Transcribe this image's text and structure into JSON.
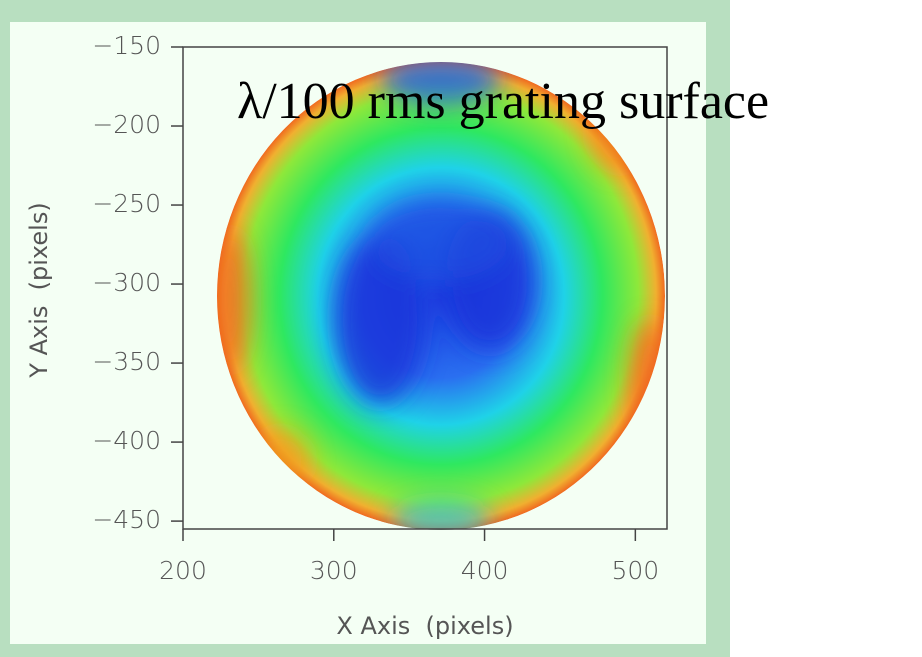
{
  "chart_data": {
    "type": "surface-map",
    "title": "λ/100 rms grating surface",
    "x_label": "X Axis  (pixels)",
    "y_label": "Y Axis  (pixels)",
    "xlim": [
      200,
      521
    ],
    "ylim": [
      -455,
      -150
    ],
    "xticks": [
      200,
      300,
      400,
      500
    ],
    "yticks": [
      {
        "value": -150,
        "label": "−150"
      },
      {
        "value": -200,
        "label": "−200"
      },
      {
        "value": -250,
        "label": "−250"
      },
      {
        "value": -300,
        "label": "−300"
      },
      {
        "value": -350,
        "label": "−350"
      },
      {
        "value": -400,
        "label": "−400"
      },
      {
        "value": -450,
        "label": "−450"
      }
    ]
  }
}
